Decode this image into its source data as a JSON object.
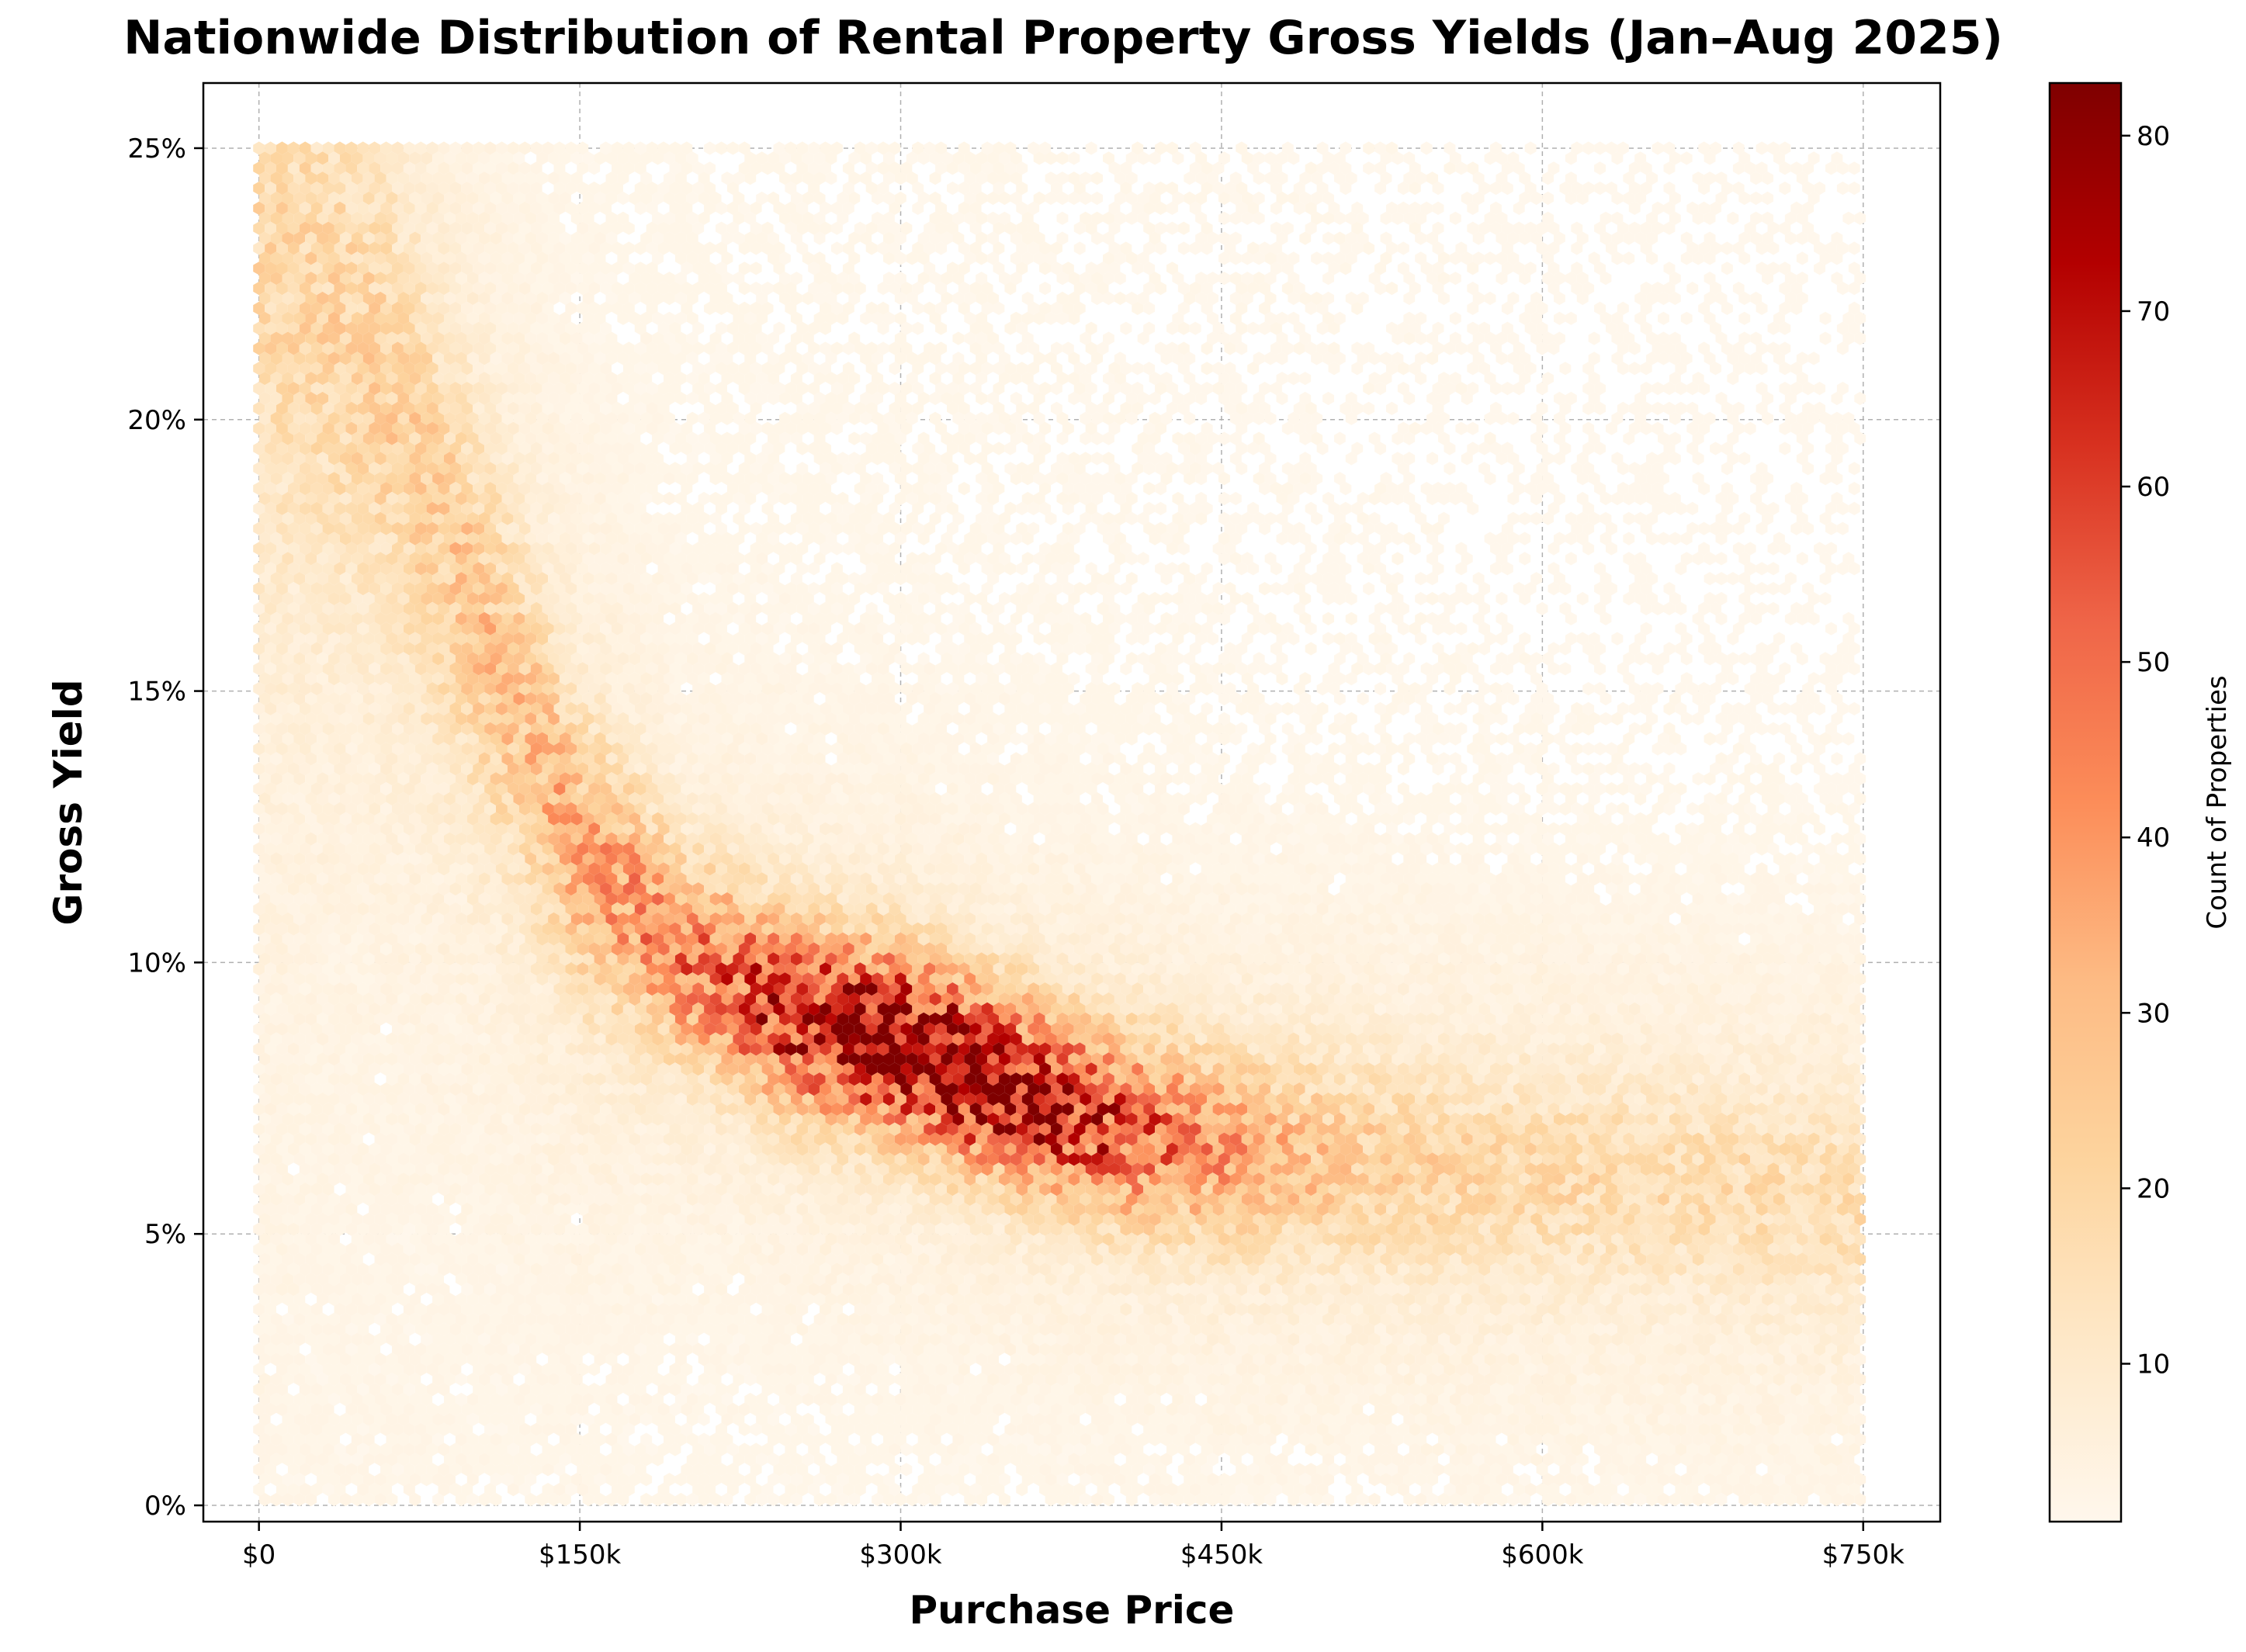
{
  "chart_data": {
    "type": "hexbin",
    "title": "Nationwide Distribution of Rental Property Gross Yields (Jan–Aug 2025)",
    "xlabel": "Purchase Price",
    "ylabel": "Gross Yield",
    "xlim": [
      -26000,
      786000
    ],
    "ylim": [
      -0.003,
      0.262
    ],
    "xticks": [
      {
        "value": 0,
        "label": "$0"
      },
      {
        "value": 150000,
        "label": "$150k"
      },
      {
        "value": 300000,
        "label": "$300k"
      },
      {
        "value": 450000,
        "label": "$450k"
      },
      {
        "value": 600000,
        "label": "$600k"
      },
      {
        "value": 750000,
        "label": "$750k"
      }
    ],
    "yticks": [
      {
        "value": 0.0,
        "label": "0%"
      },
      {
        "value": 0.05,
        "label": "5%"
      },
      {
        "value": 0.1,
        "label": "10%"
      },
      {
        "value": 0.15,
        "label": "15%"
      },
      {
        "value": 0.2,
        "label": "20%"
      },
      {
        "value": 0.25,
        "label": "25%"
      }
    ],
    "grid": true,
    "colormap": "OrRd",
    "colorbar": {
      "label": "Count of Properties",
      "min": 1,
      "max": 83,
      "ticks": [
        {
          "value": 10,
          "label": "10"
        },
        {
          "value": 20,
          "label": "20"
        },
        {
          "value": 30,
          "label": "30"
        },
        {
          "value": 40,
          "label": "40"
        },
        {
          "value": 50,
          "label": "50"
        },
        {
          "value": 60,
          "label": "60"
        },
        {
          "value": 70,
          "label": "70"
        },
        {
          "value": 80,
          "label": "80"
        }
      ]
    },
    "density_structure": {
      "x_range": [
        0,
        750000
      ],
      "y_range": [
        0.0,
        0.25
      ],
      "main_trend": [
        {
          "x": 20000,
          "y": 0.225
        },
        {
          "x": 60000,
          "y": 0.205
        },
        {
          "x": 100000,
          "y": 0.165
        },
        {
          "x": 150000,
          "y": 0.12
        },
        {
          "x": 200000,
          "y": 0.1
        },
        {
          "x": 250000,
          "y": 0.09
        },
        {
          "x": 300000,
          "y": 0.085
        },
        {
          "x": 350000,
          "y": 0.077
        },
        {
          "x": 400000,
          "y": 0.07
        },
        {
          "x": 450000,
          "y": 0.066
        },
        {
          "x": 500000,
          "y": 0.064
        },
        {
          "x": 550000,
          "y": 0.062
        },
        {
          "x": 600000,
          "y": 0.061
        },
        {
          "x": 650000,
          "y": 0.06
        },
        {
          "x": 700000,
          "y": 0.058
        },
        {
          "x": 750000,
          "y": 0.056
        }
      ],
      "peak_region": {
        "x_min": 240000,
        "x_max": 400000,
        "y_min": 0.075,
        "y_max": 0.095,
        "peak_count": 83
      }
    }
  }
}
